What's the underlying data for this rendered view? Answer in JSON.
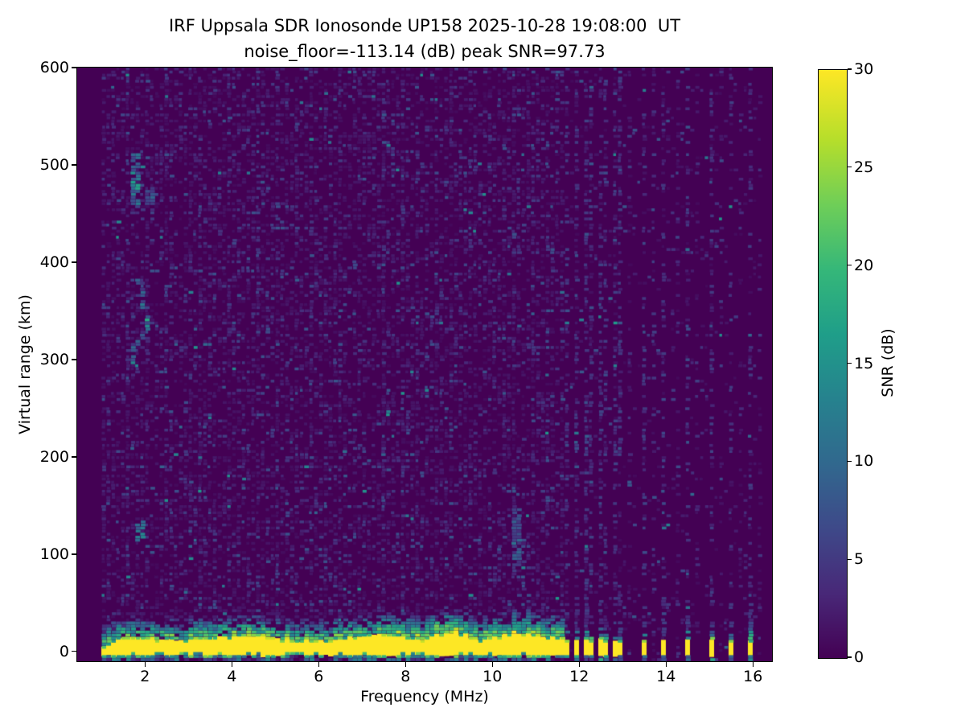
{
  "figure": {
    "background_color": "#ffffff",
    "text_color": "#000000"
  },
  "chart_data": {
    "type": "heatmap",
    "title": "IRF Uppsala SDR Ionosonde UP158 2025-10-28 19:08:00  UT",
    "subtitle": "noise_floor=-113.14 (dB) peak SNR=97.73",
    "xlabel": "Frequency (MHz)",
    "ylabel": "Virtual range (km)",
    "xlim": [
      0.44,
      16.44
    ],
    "ylim": [
      -10,
      600
    ],
    "xticks": [
      2,
      4,
      6,
      8,
      10,
      12,
      14,
      16
    ],
    "yticks": [
      0,
      100,
      200,
      300,
      400,
      500,
      600
    ],
    "grid": false,
    "noise_floor_db": -113.14,
    "peak_snr_db": 97.73,
    "colorbar": {
      "label": "SNR (dB)",
      "min": 0,
      "max": 30,
      "ticks": [
        0,
        5,
        10,
        15,
        20,
        25,
        30
      ],
      "colormap": "viridis",
      "stops": [
        [
          0.0,
          "#440154"
        ],
        [
          0.11,
          "#482878"
        ],
        [
          0.22,
          "#3e4989"
        ],
        [
          0.33,
          "#31688e"
        ],
        [
          0.44,
          "#26828e"
        ],
        [
          0.55,
          "#1f9e89"
        ],
        [
          0.66,
          "#35b779"
        ],
        [
          0.77,
          "#6ece58"
        ],
        [
          0.88,
          "#b5de2b"
        ],
        [
          1.0,
          "#fde725"
        ]
      ]
    },
    "sweep_mhz": [
      1.0,
      16.25
    ],
    "noise_regions": [
      {
        "f": [
          1.0,
          11.63
        ],
        "density": 0.4,
        "desc": "dense weak background noise dashes"
      },
      {
        "f": [
          11.63,
          16.25
        ],
        "density": 0.07,
        "desc": "sparse background between RFI columns"
      }
    ],
    "ground_clutter": {
      "desc": "saturated ground/direct-signal band, continuous across sweep",
      "f": [
        1.0,
        11.63
      ],
      "core_range_km": [
        -4,
        15
      ],
      "fringe_range_km": [
        -9,
        32
      ],
      "wide_blob_mhz": [
        8.6,
        9.45
      ],
      "core_snr_db": 30,
      "fringe_snr_db": [
        8,
        24
      ]
    },
    "clutter_bursts": [
      {
        "f": 11.74,
        "halo": 1.0
      },
      {
        "f": 11.94,
        "halo": 1.1
      },
      {
        "f": 12.13,
        "halo": 1.0
      },
      {
        "f": 12.3,
        "halo": 1.0
      },
      {
        "f": 12.46,
        "halo": 1.1
      },
      {
        "f": 12.61,
        "halo": 1.0
      },
      {
        "f": 12.78,
        "halo": 1.0
      },
      {
        "f": 12.96,
        "halo": 1.2
      },
      {
        "f": 13.48,
        "halo": 0.9
      },
      {
        "f": 13.98,
        "halo": 1.0
      },
      {
        "f": 14.48,
        "halo": 1.0
      },
      {
        "f": 15.0,
        "halo": 1.0
      },
      {
        "f": 15.5,
        "halo": 0.8
      },
      {
        "f": 15.98,
        "halo": 1.6
      }
    ],
    "rfi_columns": [
      {
        "f": 1.62,
        "strength": 0.16
      },
      {
        "f": 2.05,
        "strength": 0.1
      },
      {
        "f": 2.52,
        "strength": 0.2
      },
      {
        "f": 3.02,
        "strength": 0.12
      },
      {
        "f": 3.28,
        "strength": 0.16
      },
      {
        "f": 3.62,
        "strength": 0.1
      },
      {
        "f": 3.95,
        "strength": 0.18
      },
      {
        "f": 4.2,
        "strength": 0.12
      },
      {
        "f": 4.65,
        "strength": 0.1
      },
      {
        "f": 5.05,
        "strength": 0.16
      },
      {
        "f": 5.45,
        "strength": 0.09
      },
      {
        "f": 5.85,
        "strength": 0.1
      },
      {
        "f": 6.2,
        "strength": 0.09
      },
      {
        "f": 6.55,
        "strength": 0.16
      },
      {
        "f": 6.95,
        "strength": 0.09
      },
      {
        "f": 7.45,
        "strength": 0.2
      },
      {
        "f": 7.9,
        "strength": 0.1
      },
      {
        "f": 8.3,
        "strength": 0.14
      },
      {
        "f": 8.75,
        "strength": 0.09
      },
      {
        "f": 9.05,
        "strength": 0.14
      },
      {
        "f": 9.5,
        "strength": 0.1
      },
      {
        "f": 9.9,
        "strength": 0.09
      },
      {
        "f": 10.25,
        "strength": 0.1
      },
      {
        "f": 10.5,
        "strength": 0.18
      },
      {
        "f": 10.9,
        "strength": 0.1
      },
      {
        "f": 11.3,
        "strength": 0.14
      },
      {
        "f": 11.74,
        "strength": 0.4
      },
      {
        "f": 11.94,
        "strength": 0.4
      },
      {
        "f": 12.13,
        "strength": 0.38
      },
      {
        "f": 12.3,
        "strength": 0.36
      },
      {
        "f": 12.46,
        "strength": 0.36
      },
      {
        "f": 12.61,
        "strength": 0.34
      },
      {
        "f": 12.78,
        "strength": 0.34
      },
      {
        "f": 12.96,
        "strength": 0.32
      },
      {
        "f": 13.2,
        "strength": 0.14
      },
      {
        "f": 13.48,
        "strength": 0.3
      },
      {
        "f": 13.72,
        "strength": 0.22
      },
      {
        "f": 13.96,
        "strength": 0.28
      },
      {
        "f": 14.22,
        "strength": 0.12
      },
      {
        "f": 14.48,
        "strength": 0.26
      },
      {
        "f": 14.75,
        "strength": 0.1
      },
      {
        "f": 15.0,
        "strength": 0.24
      },
      {
        "f": 15.25,
        "strength": 0.1
      },
      {
        "f": 15.5,
        "strength": 0.22
      },
      {
        "f": 15.75,
        "strength": 0.1
      },
      {
        "f": 15.98,
        "strength": 0.26
      },
      {
        "f": 16.15,
        "strength": 0.1
      }
    ],
    "echo_features": [
      {
        "name": "F-region patch",
        "f": [
          1.68,
          1.82
        ],
        "range_km": [
          458,
          510
        ],
        "snr_db": [
          6,
          20
        ]
      },
      {
        "name": "F-region patch small",
        "f": [
          2.03,
          2.16
        ],
        "range_km": [
          460,
          474
        ],
        "snr_db": [
          5,
          12
        ]
      },
      {
        "name": "F-region trace",
        "points": [
          [
            1.86,
            383,
            9
          ],
          [
            1.9,
            368,
            10
          ],
          [
            1.95,
            355,
            12
          ],
          [
            2.0,
            341,
            18
          ],
          [
            2.05,
            333,
            14
          ],
          [
            1.95,
            325,
            8
          ],
          [
            1.85,
            318,
            9
          ],
          [
            1.76,
            311,
            10
          ],
          [
            1.7,
            304,
            9
          ]
        ]
      },
      {
        "name": "E-region dot",
        "f": [
          1.88,
          1.94
        ],
        "range_km": [
          112,
          133
        ],
        "snr_db": [
          8,
          15
        ]
      },
      {
        "name": "mid-range streak",
        "f": [
          10.44,
          10.56
        ],
        "range_km": [
          88,
          146
        ],
        "snr_db": [
          4,
          13
        ]
      }
    ]
  }
}
